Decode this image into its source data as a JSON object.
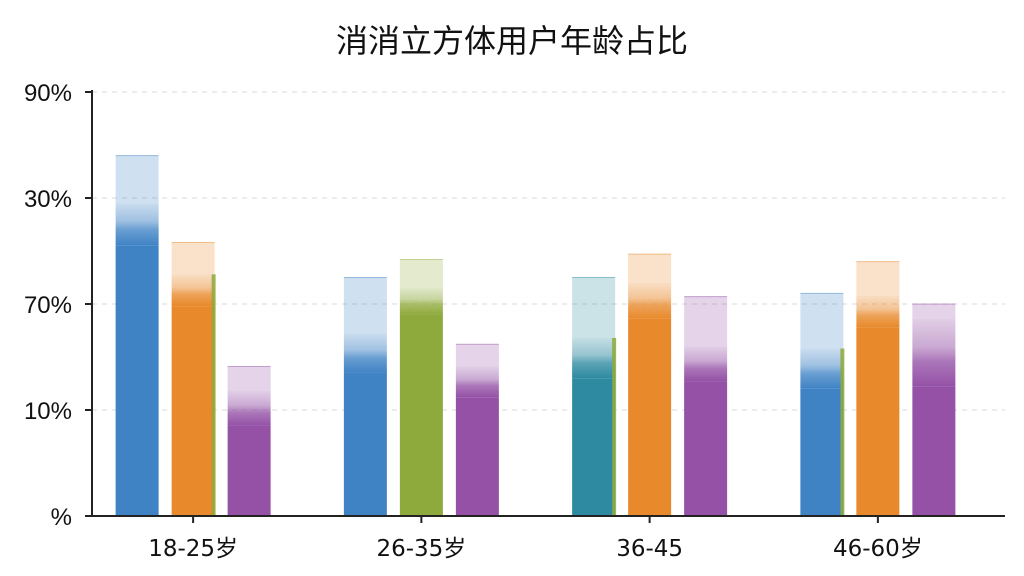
{
  "chart_data": {
    "type": "bar",
    "title": "消消立方体用户年龄占比",
    "xlabel": "",
    "ylabel": "",
    "categories": [
      "18-25岁",
      "26-35岁",
      "36-45",
      "46-60岁"
    ],
    "y_tick_labels": [
      "%",
      "10%",
      "70%",
      "30%",
      "90%"
    ],
    "ylim": [
      0,
      4
    ],
    "grid": true,
    "legend": "none",
    "colors": {
      "blue": "#3f83c5",
      "orange": "#e8892b",
      "purple": "#9451a6",
      "green": "#8faa3c",
      "teal": "#2e8aa1"
    },
    "bars": [
      {
        "category": "18-25岁",
        "top": 3.4,
        "mid": 2.95,
        "base": 2.55,
        "color": "blue"
      },
      {
        "category": "18-25岁",
        "top": 2.58,
        "mid": 2.28,
        "base": 1.98,
        "color": "orange",
        "edge": "green"
      },
      {
        "category": "18-25岁",
        "top": 1.41,
        "mid": 1.18,
        "base": 0.85,
        "color": "purple"
      },
      {
        "category": "26-35岁",
        "top": 2.25,
        "mid": 1.72,
        "base": 1.35,
        "color": "blue"
      },
      {
        "category": "26-35岁",
        "top": 2.42,
        "mid": 2.15,
        "base": 1.9,
        "color": "green"
      },
      {
        "category": "26-35岁",
        "top": 1.62,
        "mid": 1.41,
        "base": 1.12,
        "color": "purple"
      },
      {
        "category": "36-45",
        "top": 2.25,
        "mid": 1.68,
        "base": 1.3,
        "color": "teal",
        "edge": "green"
      },
      {
        "category": "36-45",
        "top": 2.47,
        "mid": 2.2,
        "base": 1.86,
        "color": "orange"
      },
      {
        "category": "36-45",
        "top": 2.07,
        "mid": 1.6,
        "base": 1.27,
        "color": "purple"
      },
      {
        "category": "46-60岁",
        "top": 2.1,
        "mid": 1.58,
        "base": 1.2,
        "color": "blue",
        "edge": "green"
      },
      {
        "category": "46-60岁",
        "top": 2.4,
        "mid": 2.08,
        "base": 1.78,
        "color": "orange"
      },
      {
        "category": "46-60岁",
        "top": 2.0,
        "mid": 1.86,
        "base": 1.22,
        "color": "purple"
      }
    ]
  }
}
